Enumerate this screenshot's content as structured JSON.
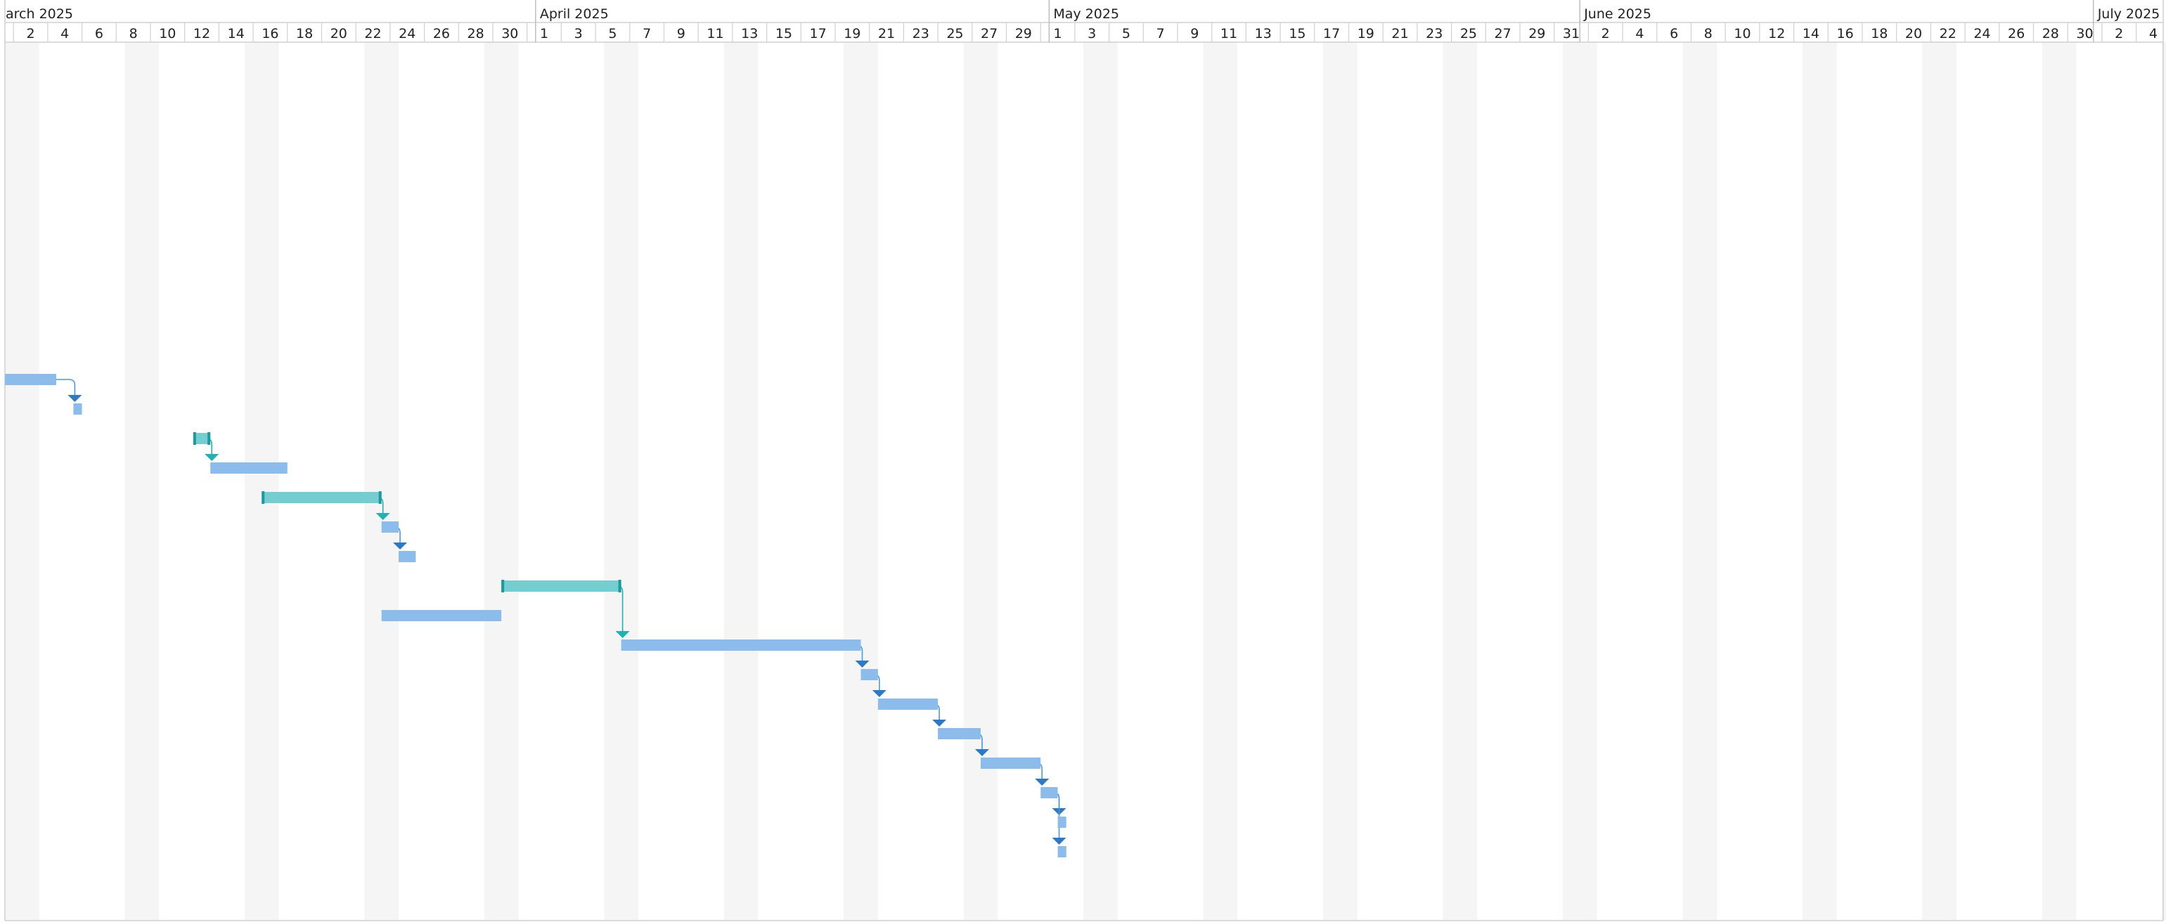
{
  "timeline": {
    "months": [
      {
        "label": "arch 2025"
      },
      {
        "label": "April 2025"
      },
      {
        "label": "May 2025"
      },
      {
        "label": "June 2025"
      },
      {
        "label": "July 2025"
      }
    ],
    "day_labels": [
      "2",
      "4",
      "6",
      "8",
      "10",
      "12",
      "14",
      "16",
      "18",
      "20",
      "22",
      "24",
      "26",
      "28",
      "30",
      "1",
      "3",
      "5",
      "7",
      "9",
      "11",
      "13",
      "15",
      "17",
      "19",
      "21",
      "23",
      "25",
      "27",
      "29",
      "1",
      "3",
      "5",
      "7",
      "9",
      "11",
      "13",
      "15",
      "17",
      "19",
      "21",
      "23",
      "25",
      "27",
      "29",
      "31",
      "2",
      "4",
      "6",
      "8",
      "10",
      "12",
      "14",
      "16",
      "18",
      "20",
      "22",
      "24",
      "26",
      "28",
      "30",
      "2",
      "4"
    ],
    "weekend_shading": true
  },
  "colors": {
    "task_bar": "#8cbcec",
    "critical_bar": "#74cdd0",
    "critical_cap": "#1c9aa0",
    "connector": "#4a9ad8",
    "connector_critical": "#22b0b4",
    "arrow": "#2e78c8",
    "arrow_critical": "#22b0b4",
    "grid": "#d0d0d0",
    "weekend": "#f5f5f5",
    "header_text": "#222222"
  },
  "tasks": [
    {
      "id": "t1",
      "type": "task",
      "start_day": -6.0,
      "end_day": 3.0
    },
    {
      "id": "t2",
      "type": "task",
      "start_day": 4.0,
      "end_day": 4.5
    },
    {
      "id": "t3",
      "type": "critical",
      "start_day": 11.0,
      "end_day": 12.0
    },
    {
      "id": "t4",
      "type": "task",
      "start_day": 12.0,
      "end_day": 16.5
    },
    {
      "id": "t5",
      "type": "critical",
      "start_day": 15.0,
      "end_day": 22.0
    },
    {
      "id": "t6",
      "type": "task",
      "start_day": 22.0,
      "end_day": 23.0
    },
    {
      "id": "t7",
      "type": "task",
      "start_day": 23.0,
      "end_day": 24.0
    },
    {
      "id": "t8",
      "type": "critical",
      "start_day": 29.0,
      "end_day": 36.0
    },
    {
      "id": "t9",
      "type": "task",
      "start_day": 22.0,
      "end_day": 29.0
    },
    {
      "id": "t10",
      "type": "task",
      "start_day": 36.0,
      "end_day": 50.0
    },
    {
      "id": "t11",
      "type": "task",
      "start_day": 50.0,
      "end_day": 51.0
    },
    {
      "id": "t12",
      "type": "task",
      "start_day": 51.0,
      "end_day": 54.5
    },
    {
      "id": "t13",
      "type": "task",
      "start_day": 54.5,
      "end_day": 57.0
    },
    {
      "id": "t14",
      "type": "task",
      "start_day": 57.0,
      "end_day": 60.5
    },
    {
      "id": "t15",
      "type": "task",
      "start_day": 60.5,
      "end_day": 61.5
    },
    {
      "id": "t16",
      "type": "task",
      "start_day": 61.5,
      "end_day": 62.0
    },
    {
      "id": "t17",
      "type": "task",
      "start_day": 61.5,
      "end_day": 62.0
    }
  ],
  "dependencies": [
    {
      "from": "t1",
      "to": "t2",
      "critical": false
    },
    {
      "from": "t3",
      "to": "t4",
      "critical": true
    },
    {
      "from": "t5",
      "to": "t6",
      "critical": true
    },
    {
      "from": "t6",
      "to": "t7",
      "critical": false
    },
    {
      "from": "t8",
      "to": "t10",
      "critical": true
    },
    {
      "from": "t10",
      "to": "t11",
      "critical": false
    },
    {
      "from": "t11",
      "to": "t12",
      "critical": false
    },
    {
      "from": "t12",
      "to": "t13",
      "critical": false
    },
    {
      "from": "t13",
      "to": "t14",
      "critical": false
    },
    {
      "from": "t14",
      "to": "t15",
      "critical": false
    },
    {
      "from": "t15",
      "to": "t16",
      "critical": false
    },
    {
      "from": "t15",
      "to": "t17",
      "critical": false
    }
  ]
}
